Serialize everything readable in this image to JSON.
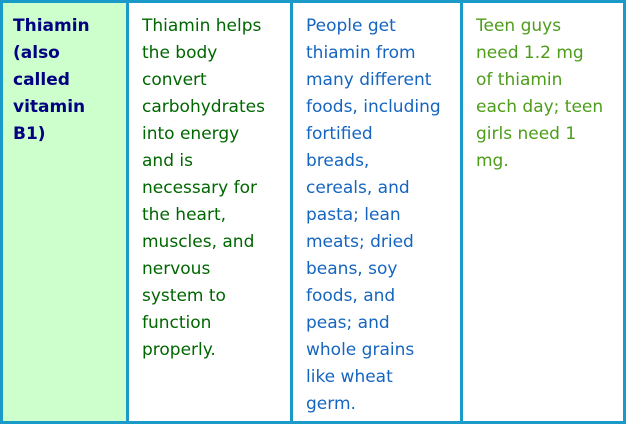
{
  "colors": {
    "border": "#1a9ac9",
    "nutrient_bg": "#ccffcc",
    "nutrient_text": "#000080",
    "function_text": "#006600",
    "sources_text": "#1565c0",
    "needs_text": "#4d9d1a"
  },
  "row": {
    "nutrient": "Thiamin\n(also\ncalled\nvitamin\nB1)",
    "function": "Thiamin helps\nthe body\nconvert\ncarbohydrates\ninto energy\nand is\nnecessary for\nthe heart,\nmuscles, and\nnervous\nsystem to\nfunction\nproperly.",
    "sources": "People get\nthiamin from\nmany different\nfoods, including\nfortified\nbreads,\ncereals, and\npasta; lean\nmeats; dried\nbeans, soy\nfoods, and\npeas; and\nwhole grains\nlike wheat\ngerm.",
    "needs": "Teen guys\nneed 1.2 mg\nof thiamin\neach day; teen\ngirls need 1\nmg."
  }
}
